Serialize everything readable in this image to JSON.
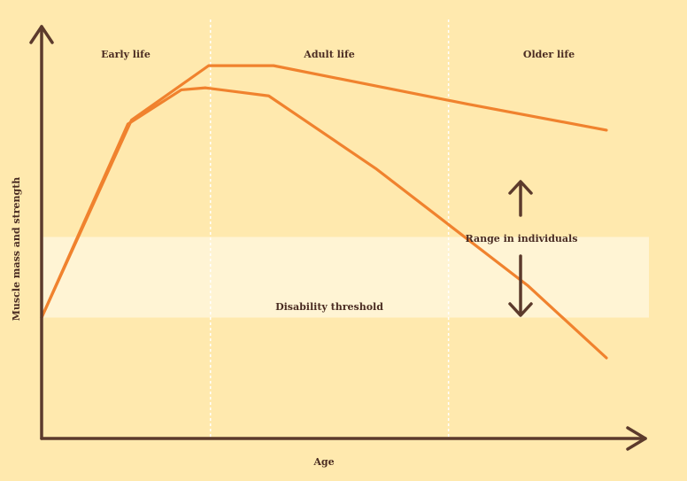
{
  "colors": {
    "background": "#FFE9AE",
    "band": "#FFF4D4",
    "curve": "#F0822E",
    "axis": "#5C3A2C",
    "text": "#4A2C22",
    "divider": "#FFFFFF"
  },
  "chart_data": {
    "type": "line",
    "xlabel": "Age",
    "ylabel": "Muscle mass and strength",
    "phases": [
      "Early life",
      "Adult life",
      "Older life"
    ],
    "annotations": {
      "threshold": "Disability threshold",
      "range": "Range in individuals"
    },
    "xlim": [
      0,
      100
    ],
    "ylim": [
      0,
      100
    ],
    "series": [
      {
        "values": [
          {
            "x": 0,
            "y": 30
          },
          {
            "x": 14.8,
            "y": 79
          },
          {
            "x": 27.5,
            "y": 92.5
          },
          {
            "x": 38.2,
            "y": 92.5
          },
          {
            "x": 70,
            "y": 83
          },
          {
            "x": 93,
            "y": 76.5
          }
        ]
      },
      {
        "values": [
          {
            "x": 0,
            "y": 30
          },
          {
            "x": 14.2,
            "y": 78
          },
          {
            "x": 23,
            "y": 86.5
          },
          {
            "x": 27,
            "y": 87
          },
          {
            "x": 37.4,
            "y": 85
          },
          {
            "x": 55,
            "y": 67
          },
          {
            "x": 80,
            "y": 38
          },
          {
            "x": 93,
            "y": 20
          }
        ]
      }
    ],
    "threshold_band": [
      30,
      50
    ]
  }
}
